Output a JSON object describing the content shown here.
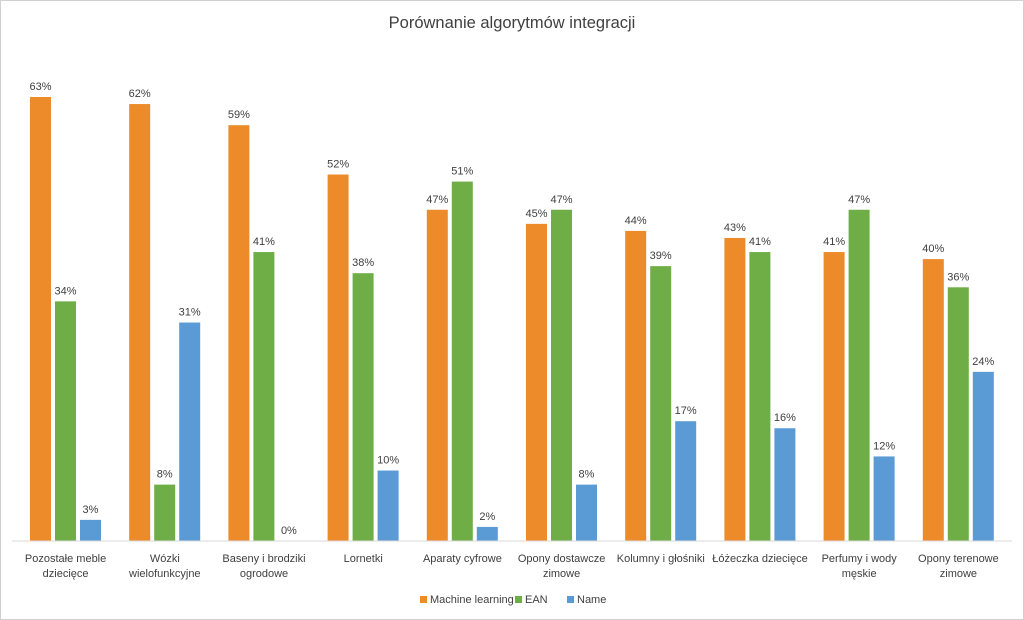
{
  "chart_data": {
    "type": "bar",
    "title": "Porównanie algorytmów integracji",
    "categories": [
      [
        "Pozostałe meble",
        "dziecięce"
      ],
      [
        "Wózki",
        "wielofunkcyjne"
      ],
      [
        "Baseny i brodziki",
        "ogrodowe"
      ],
      [
        "Lornetki"
      ],
      [
        "Aparaty cyfrowe"
      ],
      [
        "Opony dostawcze",
        "zimowe"
      ],
      [
        "Kolumny i głośniki"
      ],
      [
        "Łóżeczka dziecięce"
      ],
      [
        "Perfumy i wody",
        "męskie"
      ],
      [
        "Opony terenowe",
        "zimowe"
      ]
    ],
    "series": [
      {
        "name": "Machine learning",
        "color": "#ED8B2A",
        "values": [
          63,
          62,
          59,
          52,
          47,
          45,
          44,
          43,
          41,
          40
        ]
      },
      {
        "name": "EAN",
        "color": "#6FAD47",
        "values": [
          34,
          8,
          41,
          38,
          51,
          47,
          39,
          41,
          47,
          36
        ]
      },
      {
        "name": "Name",
        "color": "#5B9BD5",
        "values": [
          3,
          31,
          0,
          10,
          2,
          8,
          17,
          16,
          12,
          24
        ]
      }
    ],
    "value_suffix": "%",
    "ylim": [
      0,
      63
    ],
    "grid": false,
    "legend_position": "bottom",
    "xlabel": "",
    "ylabel": ""
  }
}
